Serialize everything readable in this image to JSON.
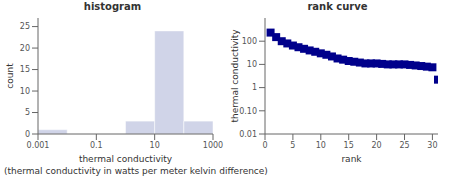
{
  "chart_data": [
    {
      "type": "histogram",
      "title": "histogram",
      "x_label": "thermal conductivity",
      "y_label": "count",
      "bins": [
        0.001,
        0.01,
        0.1,
        1,
        10,
        100,
        1000
      ],
      "values": [
        1,
        0,
        0,
        3,
        24,
        3
      ],
      "color": "#d0d4e8",
      "log": "x",
      "xlim": [
        0.001,
        1000
      ],
      "xticks": [
        0.001,
        0.1,
        10,
        1000
      ],
      "ylim": [
        0,
        27
      ],
      "yticks": [
        0,
        5,
        10,
        15,
        20,
        25
      ],
      "grid": false,
      "annotations": [
        "(thermal conductivity in watts per meter kelvin difference)"
      ]
    },
    {
      "type": "scatter",
      "title": "rank curve",
      "x_label": "rank",
      "y_label": "thermal conductivity",
      "x": [
        1,
        2,
        3,
        4,
        5,
        6,
        7,
        8,
        9,
        10,
        11,
        12,
        13,
        14,
        15,
        16,
        17,
        18,
        19,
        20,
        21,
        22,
        23,
        24,
        25,
        26,
        27,
        28,
        29,
        30,
        31
      ],
      "values": [
        235,
        150,
        100,
        80,
        65,
        55,
        47,
        40,
        35,
        30,
        26,
        22,
        18,
        16,
        14,
        13,
        12,
        11,
        11,
        11,
        10.5,
        10,
        10,
        10,
        10,
        9.5,
        9,
        8.5,
        8,
        7.5,
        2.2
      ],
      "color": "#00008b",
      "marker": "square",
      "log": "y",
      "xlim": [
        0,
        31
      ],
      "xticks": [
        0,
        5,
        10,
        15,
        20,
        25,
        30
      ],
      "ylim": [
        0.01,
        1000
      ],
      "yticks": [
        0.01,
        {
          "value": 0.1,
          "label": "0.10"
        },
        1,
        10,
        100
      ],
      "grid": false
    }
  ]
}
